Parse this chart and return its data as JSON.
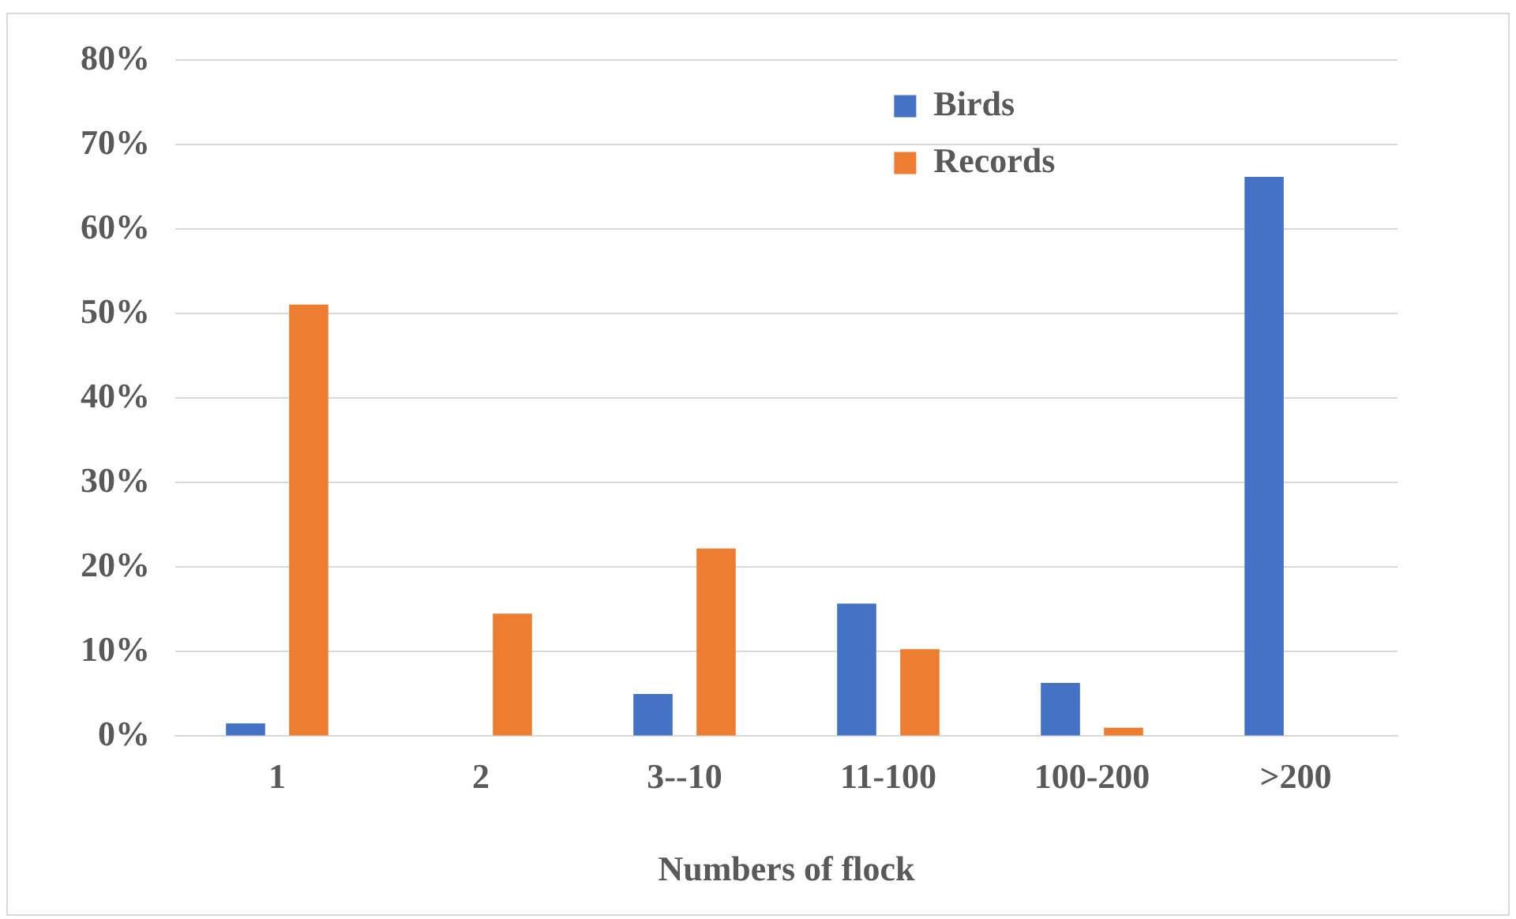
{
  "chart_data": {
    "type": "bar",
    "xlabel": "Numbers of flock",
    "categories": [
      "1",
      "2",
      "3--10",
      "11-100",
      "100-200",
      ">200"
    ],
    "series": [
      {
        "name": "Birds",
        "color": "#4472c4",
        "values": [
          1.5,
          0,
          5,
          15.7,
          6.3,
          66.2
        ]
      },
      {
        "name": "Records",
        "color": "#ed7d31",
        "values": [
          51.1,
          14.5,
          22.2,
          10.3,
          1,
          0
        ]
      }
    ],
    "ylim": [
      0,
      80
    ],
    "yticks": [
      {
        "value": 0,
        "label": "0%"
      },
      {
        "value": 10,
        "label": "10%"
      },
      {
        "value": 20,
        "label": "20%"
      },
      {
        "value": 30,
        "label": "30%"
      },
      {
        "value": 40,
        "label": "40%"
      },
      {
        "value": 50,
        "label": "50%"
      },
      {
        "value": 60,
        "label": "60%"
      },
      {
        "value": 70,
        "label": "70%"
      },
      {
        "value": 80,
        "label": "80%"
      }
    ],
    "grid": "y",
    "legend": "top right"
  }
}
